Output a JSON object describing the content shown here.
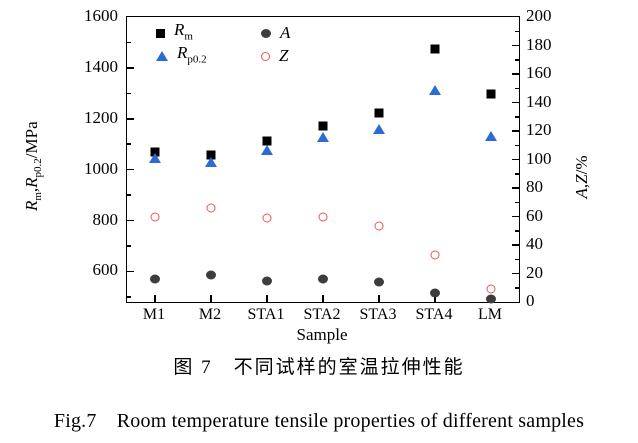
{
  "figure": {
    "caption_cn": "图 7　不同试样的室温拉伸性能",
    "caption_en": "Fig.7　Room temperature tensile properties of different samples"
  },
  "chart_data": {
    "type": "scatter",
    "categories": [
      "M1",
      "M2",
      "STA1",
      "STA2",
      "STA3",
      "STA4",
      "LM"
    ],
    "x_label": "Sample",
    "legend_position": "top-left-inside",
    "grid": false,
    "series": [
      {
        "name": "Rm",
        "label_main": "R",
        "label_sub": "m",
        "axis": "left",
        "marker": "filled-square",
        "color": "#000000",
        "values": [
          1070,
          1058,
          1112,
          1170,
          1222,
          1475,
          1297
        ]
      },
      {
        "name": "Rp02",
        "label_main": "R",
        "label_sub": "p0.2",
        "axis": "left",
        "marker": "filled-triangle",
        "color": "#2e6ad5",
        "values": [
          1046,
          1032,
          1076,
          1130,
          1158,
          1315,
          1133
        ]
      },
      {
        "name": "A",
        "label_main": "A",
        "label_sub": "",
        "axis": "right",
        "marker": "filled-circle",
        "color": "#3d3d3d",
        "values": [
          16,
          19,
          15,
          16,
          14,
          6,
          2
        ]
      },
      {
        "name": "Z",
        "label_main": "Z",
        "label_sub": "",
        "axis": "right",
        "marker": "open-circle",
        "color": "#e8565c",
        "values": [
          60,
          66,
          59,
          60,
          53,
          33,
          9
        ]
      }
    ],
    "left_axis": {
      "min": 480,
      "max": 1600,
      "ticks": [
        600,
        800,
        1000,
        1200,
        1400,
        1600
      ],
      "minor_step": 100,
      "unit": "MPa",
      "label_parts": [
        "R",
        "m",
        ",",
        "R",
        "p0.2",
        "/MPa"
      ]
    },
    "right_axis": {
      "min": 0,
      "max": 200,
      "ticks": [
        0,
        20,
        40,
        60,
        80,
        100,
        120,
        140,
        160,
        180,
        200
      ],
      "minor_step": 10,
      "unit": "%",
      "label_parts": [
        "A",
        ",",
        "Z",
        "/%"
      ]
    }
  }
}
